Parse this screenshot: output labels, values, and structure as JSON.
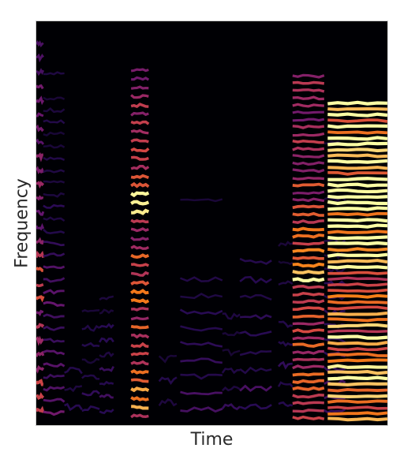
{
  "chart_data": {
    "type": "heatmap",
    "title": "",
    "xlabel": "Time",
    "ylabel": "Frequency",
    "x_ticks": [],
    "y_ticks": [],
    "colormap": "magma",
    "background_color": "#000004",
    "grid": false,
    "legend": "none",
    "segments": [
      {
        "name": "",
        "x_start": 0.0,
        "x_end": 0.02,
        "harmonics": 34,
        "f0": 0.035,
        "peak": 0.7,
        "decay": 0.6,
        "hot_band": [
          0.3,
          0.45
        ]
      },
      {
        "name": "",
        "x_start": 0.02,
        "x_end": 0.08,
        "harmonics": 30,
        "f0": 0.03,
        "peak": 0.4,
        "decay": 1.2,
        "hot_band": [
          0.3,
          0.4
        ]
      },
      {
        "name": "",
        "x_start": 0.08,
        "x_end": 0.13,
        "harmonics": 18,
        "f0": 0.045,
        "peak": 0.22,
        "decay": 2.0,
        "hot_band": [
          0.0,
          0.0
        ]
      },
      {
        "name": "",
        "x_start": 0.13,
        "x_end": 0.18,
        "harmonics": 20,
        "f0": 0.04,
        "peak": 0.25,
        "decay": 2.0,
        "hot_band": [
          0.0,
          0.0
        ]
      },
      {
        "name": "",
        "x_start": 0.18,
        "x_end": 0.22,
        "harmonics": 24,
        "f0": 0.035,
        "peak": 0.28,
        "decay": 1.8,
        "hot_band": [
          0.0,
          0.0
        ]
      },
      {
        "name": "",
        "x_start": 0.27,
        "x_end": 0.32,
        "harmonics": 40,
        "f0": 0.022,
        "peak": 0.8,
        "decay": 0.4,
        "hot_band": [
          0.5,
          0.62
        ]
      },
      {
        "name": "",
        "x_start": 0.35,
        "x_end": 0.4,
        "harmonics": 14,
        "f0": 0.055,
        "peak": 0.22,
        "decay": 2.4,
        "hot_band": [
          0.0,
          0.0
        ]
      },
      {
        "name": "",
        "x_start": 0.41,
        "x_end": 0.53,
        "harmonics": 22,
        "f0": 0.04,
        "peak": 0.3,
        "decay": 1.8,
        "hot_band": [
          0.0,
          0.0
        ]
      },
      {
        "name": "",
        "x_start": 0.53,
        "x_end": 0.58,
        "harmonics": 18,
        "f0": 0.045,
        "peak": 0.25,
        "decay": 2.0,
        "hot_band": [
          0.0,
          0.0
        ]
      },
      {
        "name": "",
        "x_start": 0.58,
        "x_end": 0.67,
        "harmonics": 20,
        "f0": 0.045,
        "peak": 0.3,
        "decay": 1.6,
        "hot_band": [
          0.0,
          0.0
        ]
      },
      {
        "name": "",
        "x_start": 0.69,
        "x_end": 0.73,
        "harmonics": 16,
        "f0": 0.05,
        "peak": 0.25,
        "decay": 1.8,
        "hot_band": [
          0.0,
          0.0
        ]
      },
      {
        "name": "",
        "x_start": 0.73,
        "x_end": 0.82,
        "harmonics": 48,
        "f0": 0.018,
        "peak": 0.8,
        "decay": 0.35,
        "hot_band": [
          0.35,
          0.5
        ]
      },
      {
        "name": "",
        "x_start": 0.82,
        "x_end": 0.88,
        "harmonics": 24,
        "f0": 0.035,
        "peak": 0.3,
        "decay": 1.5,
        "hot_band": [
          0.0,
          0.0
        ]
      },
      {
        "name": "",
        "x_start": 0.83,
        "x_end": 1.0,
        "harmonics": 55,
        "f0": 0.0145,
        "peak": 0.92,
        "decay": 0.25,
        "hot_band": [
          0.4,
          0.8
        ]
      }
    ]
  }
}
